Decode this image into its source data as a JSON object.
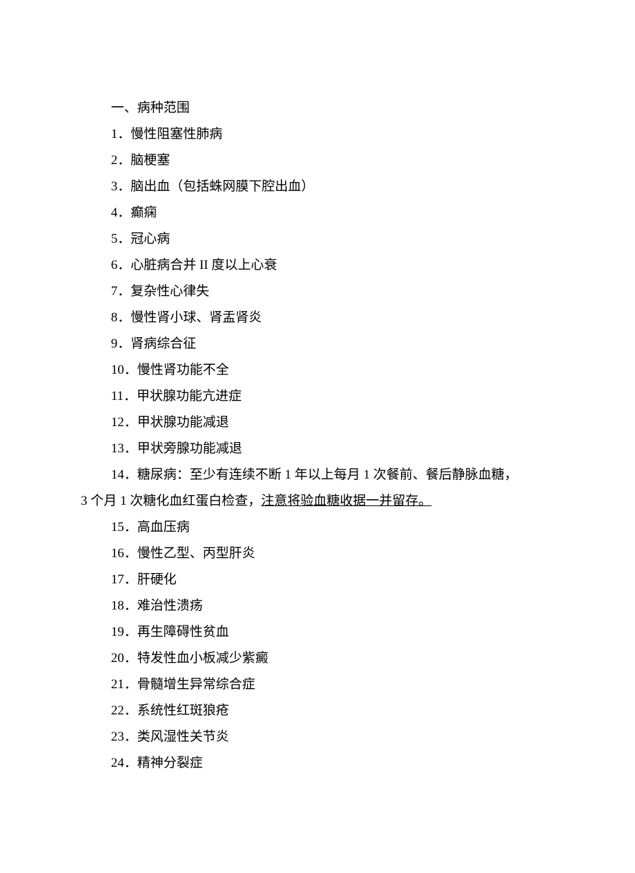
{
  "heading": "一、病种范围",
  "items": {
    "i1": "1．慢性阻塞性肺病",
    "i2": "2．脑梗塞",
    "i3": "3．脑出血（包括蛛网膜下腔出血）",
    "i4": "4．癫痫",
    "i5": "5．冠心病",
    "i6": "6．心脏病合并 II 度以上心衰",
    "i7": "7．复杂性心律失",
    "i8": "8．慢性肾小球、肾盂肾炎",
    "i9": "9．肾病综合征",
    "i10": "10．慢性肾功能不全",
    "i11": "11．甲状腺功能亢进症",
    "i12": "12．甲状腺功能减退",
    "i13": "13．甲状旁腺功能减退",
    "i14a": "14．糖尿病：至少有连续不断 1 年以上每月 1 次餐前、餐后静脉血糖，",
    "i14b_plain": "3 个月 1 次糖化血红蛋白检查，",
    "i14b_underlined": "注意将验血糖收据一并留存。",
    "i15": "15．高血压病",
    "i16": "16．慢性乙型、丙型肝炎",
    "i17": "17．肝硬化",
    "i18": "18．难治性溃疡",
    "i19": "19．再生障碍性贫血",
    "i20": "20．特发性血小板减少紫癜",
    "i21": "21．骨髓增生异常综合症",
    "i22": "22．系统性红斑狼疮",
    "i23": "23．类风湿性关节炎",
    "i24": "24．精神分裂症"
  }
}
